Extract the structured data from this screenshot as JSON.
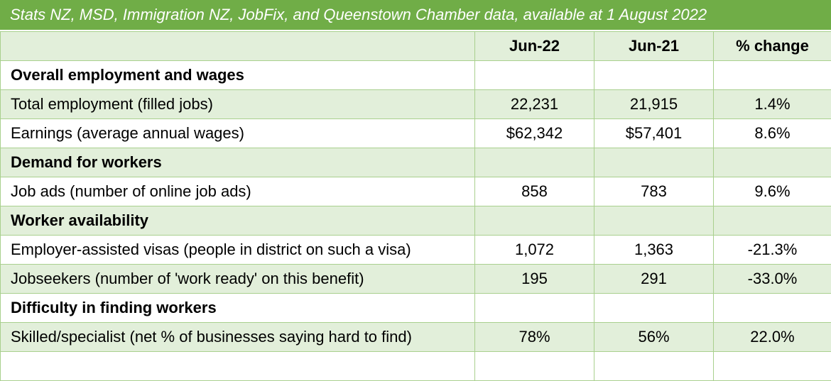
{
  "title": "Stats NZ, MSD, Immigration NZ, JobFix, and Queenstown Chamber data, available at 1 August 2022",
  "table": {
    "columns": [
      "Jun-22",
      "Jun-21",
      "% change"
    ],
    "rows": [
      {
        "heading": "Overall employment and wages"
      },
      {
        "label": "Total employment (filled jobs)",
        "cells": [
          "22,231",
          "21,915",
          "1.4%"
        ]
      },
      {
        "label": "Earnings (average annual wages)",
        "cells": [
          "$62,342",
          "$57,401",
          "8.6%"
        ]
      },
      {
        "heading": "Demand for workers"
      },
      {
        "label": "Job ads (number of online job ads)",
        "cells": [
          "858",
          "783",
          "9.6%"
        ]
      },
      {
        "heading": "Worker availability"
      },
      {
        "label": "Employer-assisted visas (people in district on such a visa)",
        "cells": [
          "1,072",
          "1,363",
          "-21.3%"
        ]
      },
      {
        "label": "Jobseekers (number of 'work ready' on this benefit)",
        "cells": [
          "195",
          "291",
          "-33.0%"
        ]
      },
      {
        "heading": "Difficulty in finding workers"
      },
      {
        "label": "Skilled/specialist (net % of businesses saying hard to find)",
        "cells": [
          "78%",
          "56%",
          "22.0%"
        ]
      }
    ]
  }
}
